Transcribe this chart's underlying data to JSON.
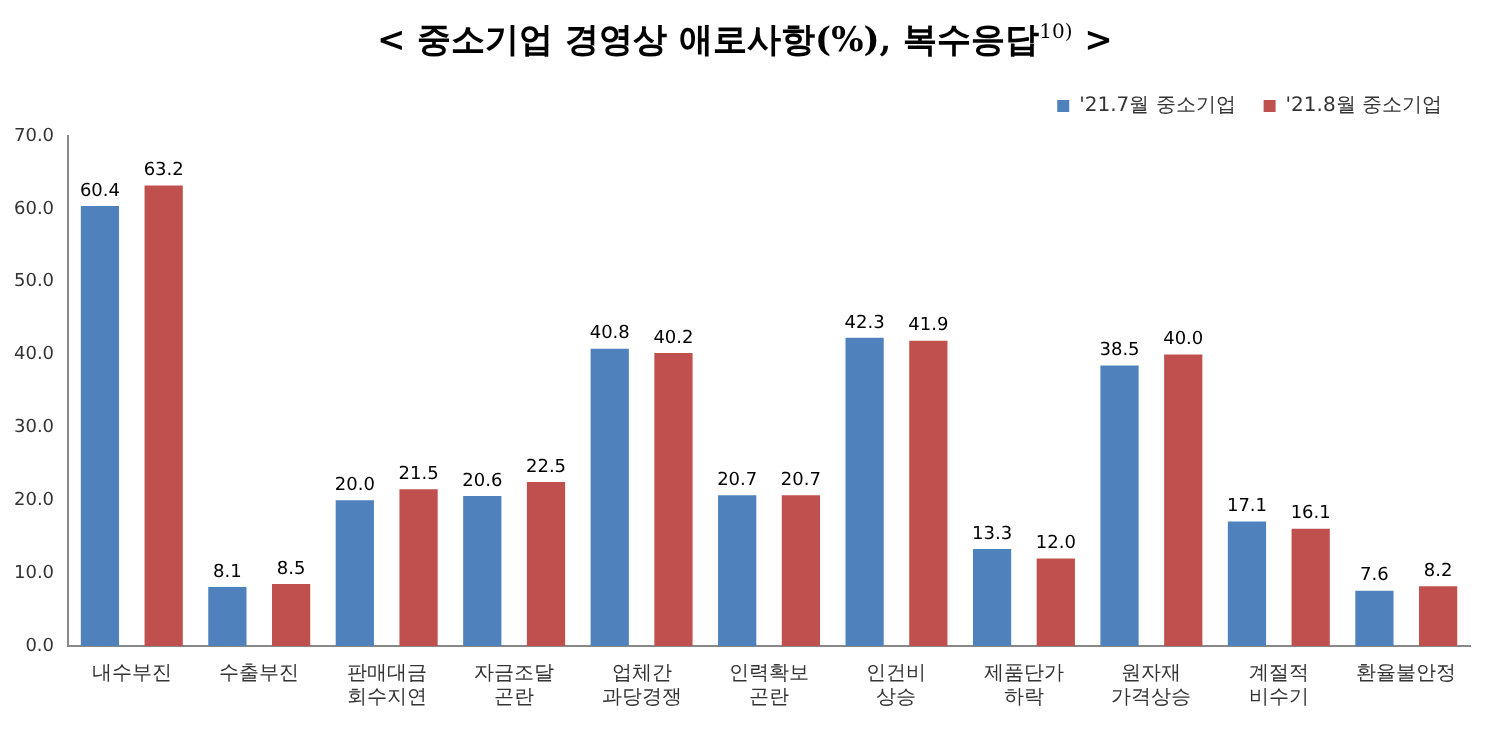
{
  "chart_data": {
    "type": "bar",
    "title": "< 중소기업 경영상 애로사항(%), 복수응답$^{10)}$ >",
    "categories": [
      "내수부진",
      "수출부진",
      "판매대금 회수지연",
      "자금조달 곤란",
      "업체간 과당경쟁",
      "인력확보 곤란",
      "인건비 상승",
      "제품단가 하락",
      "원자재 가격상승",
      "계절적 비수기",
      "환율불안정"
    ],
    "series": [
      {
        "name": "'21.7월 중소기업",
        "color": "#4f81bd",
        "values": [
          60.4,
          8.1,
          20.0,
          20.6,
          40.8,
          20.7,
          42.3,
          13.3,
          38.5,
          17.1,
          7.6
        ],
        "value_labels": [
          "60.4",
          "8.1",
          "20.0",
          "20.6",
          "40.8",
          "20.7",
          "42.3",
          "13.3",
          "38.5",
          "17.1",
          "7.6"
        ]
      },
      {
        "name": "'21.8월 중소기업",
        "color": "#c0504d",
        "values": [
          63.2,
          8.5,
          21.5,
          22.5,
          40.2,
          20.7,
          41.9,
          12.0,
          40.0,
          16.1,
          8.2
        ],
        "value_labels": [
          "63.2",
          "8.5",
          "21.5",
          "22.5",
          "40.2",
          "20.7",
          "41.9",
          "12.0",
          "40.0",
          "16.1",
          "8.2"
        ]
      }
    ],
    "ylim": [
      0,
      70
    ],
    "yticks": [
      {
        "value": 0,
        "label": "0.0"
      },
      {
        "value": 10,
        "label": "10.0"
      },
      {
        "value": 20,
        "label": "20.0"
      },
      {
        "value": 30,
        "label": "30.0"
      },
      {
        "value": 40,
        "label": "40.0"
      },
      {
        "value": 50,
        "label": "50.0"
      },
      {
        "value": 60,
        "label": "60.0"
      },
      {
        "value": 70,
        "label": "70.0"
      }
    ],
    "grid": false,
    "legend": "top right"
  }
}
